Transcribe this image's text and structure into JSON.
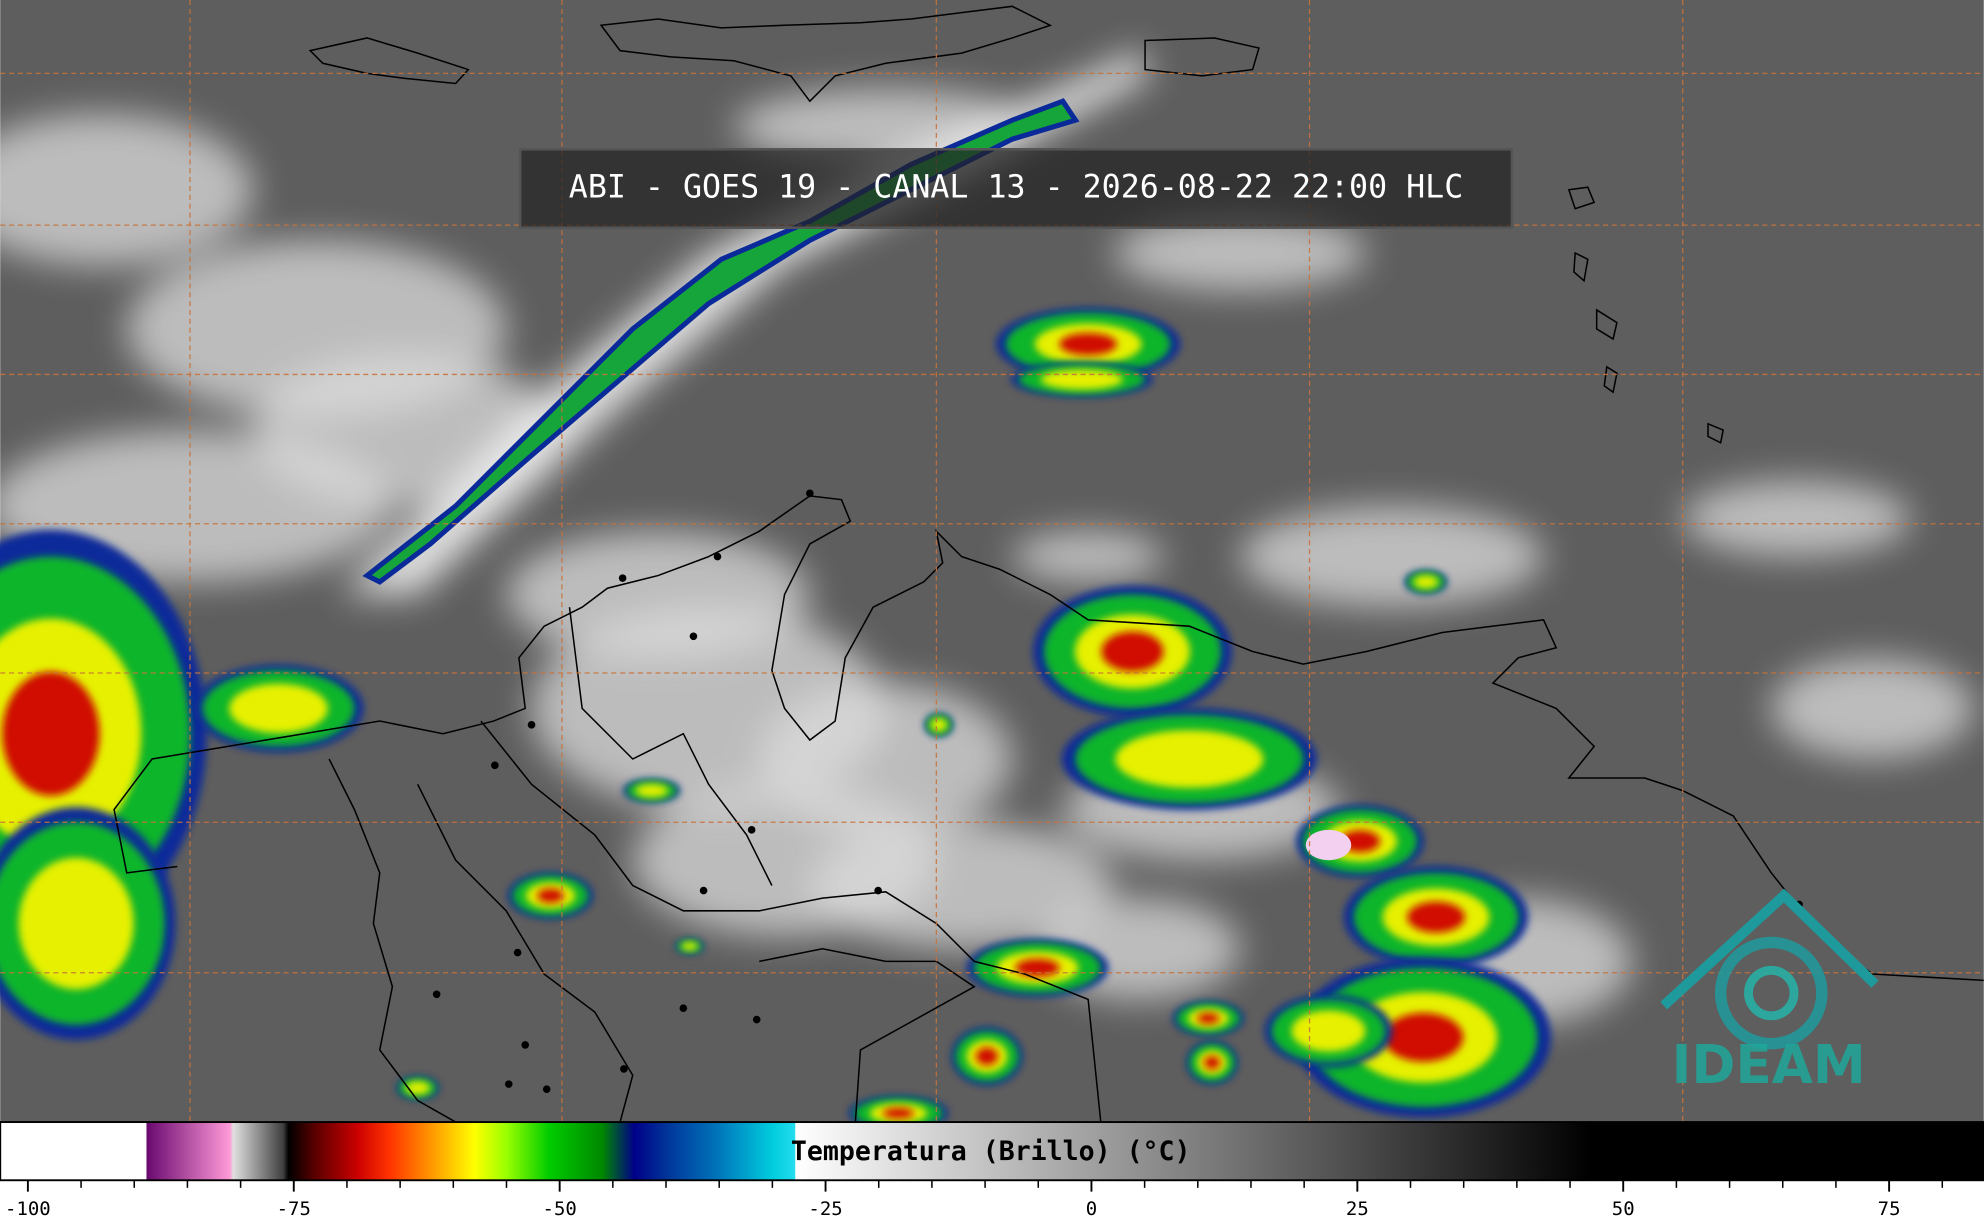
{
  "title": "ABI - GOES 19 - CANAL 13 - 2026-08-22 22:00 HLC",
  "logo_text": "IDEAM",
  "colorbar": {
    "label": "Temperatura (Brillo) (°C)",
    "xlim": [
      -102.6,
      83.9
    ],
    "xticks": [
      -100,
      -75,
      -50,
      -25,
      0,
      25,
      50,
      75
    ],
    "minor_xticks": [
      -95,
      -90,
      -85,
      -80,
      -70,
      -65,
      -60,
      -55,
      -45,
      -40,
      -35,
      -30,
      -20,
      -15,
      -10,
      -5,
      5,
      10,
      15,
      20,
      30,
      35,
      40,
      45,
      55,
      60,
      65,
      70,
      80
    ],
    "colormap": [
      {
        "value": -102.6,
        "color": "#ffffff"
      },
      {
        "value": -88.9,
        "color": "#ffffff"
      },
      {
        "value": -88.8,
        "color": "#6a0a70"
      },
      {
        "value": -81,
        "color": "#ff9ad8"
      },
      {
        "value": -80.7,
        "color": "#e0e0e0"
      },
      {
        "value": -76,
        "color": "#404040"
      },
      {
        "value": -75.5,
        "color": "#000000"
      },
      {
        "value": -73,
        "color": "#5a0000"
      },
      {
        "value": -69,
        "color": "#cc0000"
      },
      {
        "value": -66,
        "color": "#ff3300"
      },
      {
        "value": -62,
        "color": "#ff9900"
      },
      {
        "value": -58,
        "color": "#ffff00"
      },
      {
        "value": -55,
        "color": "#99ff00"
      },
      {
        "value": -51,
        "color": "#00cc00"
      },
      {
        "value": -46,
        "color": "#008800"
      },
      {
        "value": -43,
        "color": "#000088"
      },
      {
        "value": -40,
        "color": "#003399"
      },
      {
        "value": -35,
        "color": "#0077bb"
      },
      {
        "value": -30,
        "color": "#00ccdd"
      },
      {
        "value": -27.9,
        "color": "#22ddee"
      },
      {
        "value": -27.8,
        "color": "#ffffff"
      },
      {
        "value": 47,
        "color": "#000000"
      },
      {
        "value": 83.9,
        "color": "#000000"
      }
    ]
  }
}
